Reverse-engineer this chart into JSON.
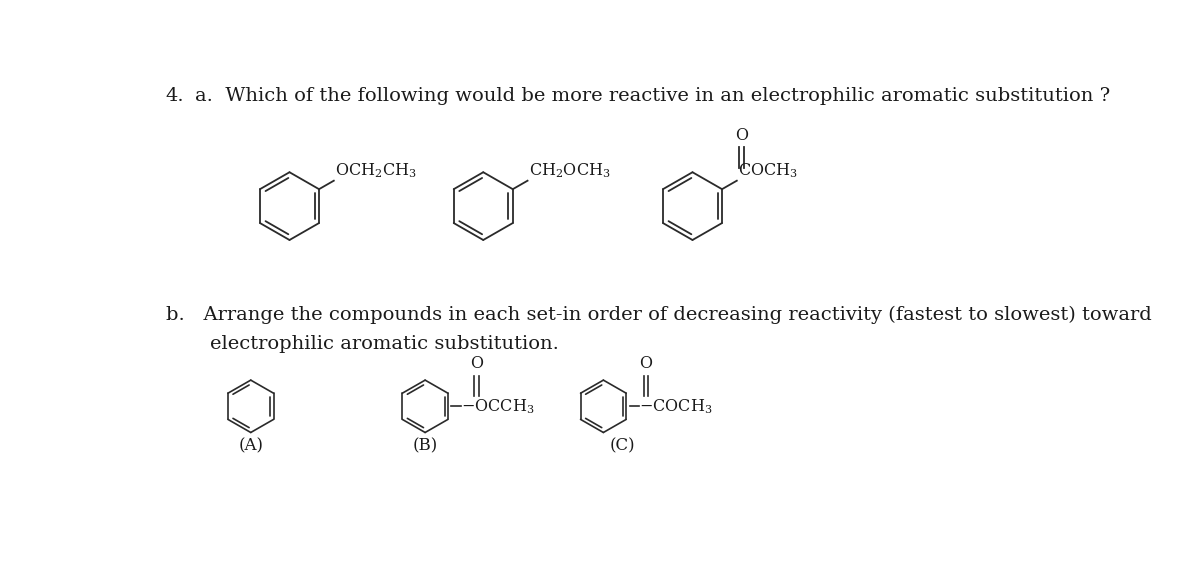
{
  "bg_color": "#ffffff",
  "text_color": "#1a1a1a",
  "title": "4.",
  "qa": "a.  Which of the following would be more reactive in an electrophilic aromatic substitution ?",
  "qb1": "b.   Arrange the compounds in each set-in order of decreasing reactivity (fastest to slowest) toward",
  "qb2": "     electrophilic aromatic substitution.",
  "font_size_q": 14,
  "font_size_chem": 11.5,
  "font_size_label": 12
}
